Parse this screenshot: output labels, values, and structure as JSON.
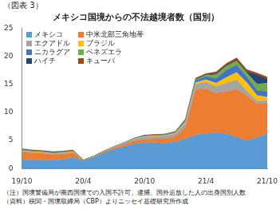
{
  "figure_label": "（図表 3）",
  "notes": [
    "（注）国境警備局が南西国境での入国不許可、逮捕、国外追放した人の出身国別人数",
    "（資料）税関・国境取締局（CBP）よりニッセイ基礎研究所作成"
  ],
  "chart_data": {
    "type": "area",
    "title": "メキシコ国境からの不法越境者数（国別）",
    "stacked": true,
    "grid": false,
    "legend": "upper left",
    "categories": [
      "19/10",
      null,
      null,
      null,
      null,
      null,
      "20/4",
      null,
      null,
      null,
      null,
      null,
      "20/10",
      null,
      null,
      null,
      null,
      null,
      "21/4",
      null,
      null,
      null,
      null,
      null,
      "21/10"
    ],
    "ylim": [
      0,
      25
    ],
    "yticks": [
      0,
      5,
      10,
      15,
      20,
      25
    ],
    "series": [
      {
        "name": "メキシコ",
        "color": "#5b9bd5",
        "values": [
          1.6,
          1.5,
          1.5,
          1.5,
          1.6,
          2.0,
          1.4,
          2.0,
          2.8,
          3.4,
          3.9,
          4.4,
          4.6,
          4.6,
          4.5,
          4.7,
          5.3,
          6.0,
          6.2,
          6.4,
          6.2,
          5.6,
          5.0,
          5.5,
          6.2
        ]
      },
      {
        "name": "中米北部三角地帯",
        "color": "#ed7d31",
        "values": [
          1.4,
          1.3,
          1.2,
          1.0,
          1.0,
          0.8,
          0.1,
          0.1,
          0.2,
          0.3,
          0.4,
          0.5,
          0.6,
          0.7,
          0.8,
          0.9,
          2.0,
          8.0,
          8.0,
          7.0,
          7.5,
          8.5,
          8.0,
          6.0,
          5.5
        ]
      },
      {
        "name": "エクアドル",
        "color": "#a5a5a5",
        "values": [
          0.1,
          0.1,
          0.1,
          0.1,
          0.1,
          0.1,
          0.0,
          0.1,
          0.1,
          0.2,
          0.3,
          0.3,
          0.4,
          0.4,
          0.5,
          0.6,
          0.8,
          1.0,
          1.2,
          1.2,
          1.5,
          1.7,
          0.8,
          0.5,
          0.4
        ]
      },
      {
        "name": "ブラジル",
        "color": "#ffc000",
        "values": [
          0.1,
          0.1,
          0.1,
          0.1,
          0.1,
          0.1,
          0.0,
          0.0,
          0.0,
          0.0,
          0.0,
          0.1,
          0.1,
          0.1,
          0.1,
          0.1,
          0.2,
          0.3,
          0.4,
          0.6,
          1.0,
          1.3,
          1.5,
          1.0,
          0.6
        ]
      },
      {
        "name": "ニカラグア",
        "color": "#4472c4",
        "values": [
          0.1,
          0.1,
          0.1,
          0.1,
          0.1,
          0.1,
          0.0,
          0.0,
          0.0,
          0.0,
          0.0,
          0.1,
          0.1,
          0.1,
          0.1,
          0.1,
          0.2,
          0.4,
          0.6,
          0.8,
          1.3,
          1.3,
          1.0,
          0.9,
          1.0
        ]
      },
      {
        "name": "ベネズエラ",
        "color": "#70ad47",
        "values": [
          0.05,
          0.05,
          0.05,
          0.05,
          0.05,
          0.05,
          0.0,
          0.0,
          0.0,
          0.0,
          0.0,
          0.0,
          0.05,
          0.05,
          0.05,
          0.05,
          0.1,
          0.1,
          0.2,
          0.7,
          0.7,
          0.7,
          0.7,
          1.1,
          1.5
        ]
      },
      {
        "name": "ハイチ",
        "color": "#264478",
        "values": [
          0.05,
          0.05,
          0.05,
          0.05,
          0.05,
          0.05,
          0.0,
          0.0,
          0.0,
          0.0,
          0.0,
          0.0,
          0.05,
          0.05,
          0.05,
          0.05,
          0.1,
          0.1,
          0.1,
          0.2,
          0.2,
          0.1,
          0.2,
          1.7,
          0.7
        ]
      },
      {
        "name": "キューバ",
        "color": "#9e480e",
        "values": [
          0.1,
          0.1,
          0.1,
          0.1,
          0.1,
          0.1,
          0.0,
          0.0,
          0.0,
          0.0,
          0.0,
          0.0,
          0.05,
          0.05,
          0.05,
          0.1,
          0.1,
          0.2,
          0.2,
          0.3,
          0.3,
          0.5,
          0.4,
          0.3,
          0.4
        ]
      }
    ]
  }
}
